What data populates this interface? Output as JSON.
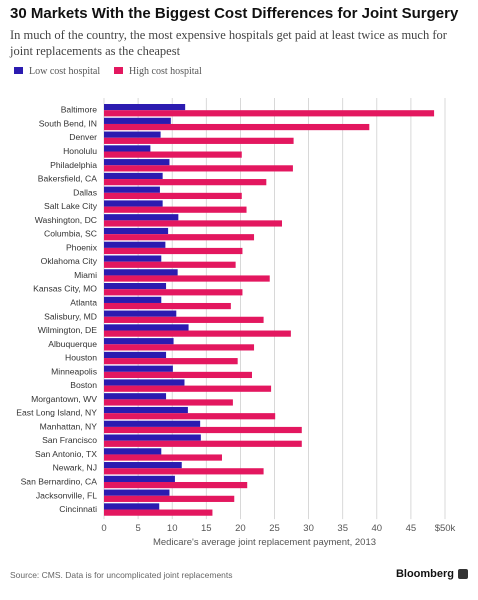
{
  "header": {
    "title": "30 Markets With the Biggest Cost Differences for Joint Surgery",
    "subtitle": "In much of the country, the most expensive hospitals get paid at least twice as much for joint replacements as the cheapest"
  },
  "legend": {
    "low_label": "Low cost hospital",
    "high_label": "High cost hospital"
  },
  "footer": {
    "source": "Source: CMS. Data is for uncomplicated joint replacements",
    "brand": "Bloomberg"
  },
  "colors": {
    "low": "#2b1bb0",
    "high": "#e3175f",
    "grid": "#cfcfcf",
    "label": "#333333"
  },
  "chart_data": {
    "type": "bar",
    "orientation": "horizontal",
    "xlabel": "Medicare's average joint replacement payment, 2013",
    "xlim": [
      0,
      50
    ],
    "xticks": [
      0,
      5,
      10,
      15,
      20,
      25,
      30,
      35,
      40,
      45,
      50
    ],
    "xtick_labels": [
      "0",
      "5",
      "10",
      "15",
      "20",
      "25",
      "30",
      "35",
      "40",
      "45",
      "$50k"
    ],
    "grid": true,
    "legend_position": "top-left",
    "categories": [
      "Baltimore",
      "South Bend, IN",
      "Denver",
      "Honolulu",
      "Philadelphia",
      "Bakersfield, CA",
      "Dallas",
      "Salt Lake City",
      "Washington, DC",
      "Columbia, SC",
      "Phoenix",
      "Oklahoma City",
      "Miami",
      "Kansas City, MO",
      "Atlanta",
      "Salisbury, MD",
      "Wilmington, DE",
      "Albuquerque",
      "Houston",
      "Minneapolis",
      "Boston",
      "Morgantown, WV",
      "East Long Island, NY",
      "Manhattan, NY",
      "San Francisco",
      "San Antonio, TX",
      "Newark, NJ",
      "San Bernardino, CA",
      "Jacksonville, FL",
      "Cincinnati"
    ],
    "series": [
      {
        "name": "Low cost hospital",
        "values": [
          11.9,
          9.8,
          8.3,
          6.8,
          9.6,
          8.6,
          8.2,
          8.6,
          10.9,
          9.4,
          9.0,
          8.4,
          10.8,
          9.1,
          8.4,
          10.6,
          12.4,
          10.2,
          9.1,
          10.1,
          11.8,
          9.1,
          12.3,
          14.1,
          14.2,
          8.4,
          11.4,
          10.4,
          9.6,
          8.1
        ]
      },
      {
        "name": "High cost hospital",
        "values": [
          48.4,
          38.9,
          27.8,
          20.2,
          27.7,
          23.8,
          20.2,
          20.9,
          26.1,
          22.0,
          20.3,
          19.3,
          24.3,
          20.3,
          18.6,
          23.4,
          27.4,
          22.0,
          19.6,
          21.7,
          24.5,
          18.9,
          25.1,
          29.0,
          29.0,
          17.3,
          23.4,
          21.0,
          19.1,
          15.9
        ]
      }
    ]
  }
}
